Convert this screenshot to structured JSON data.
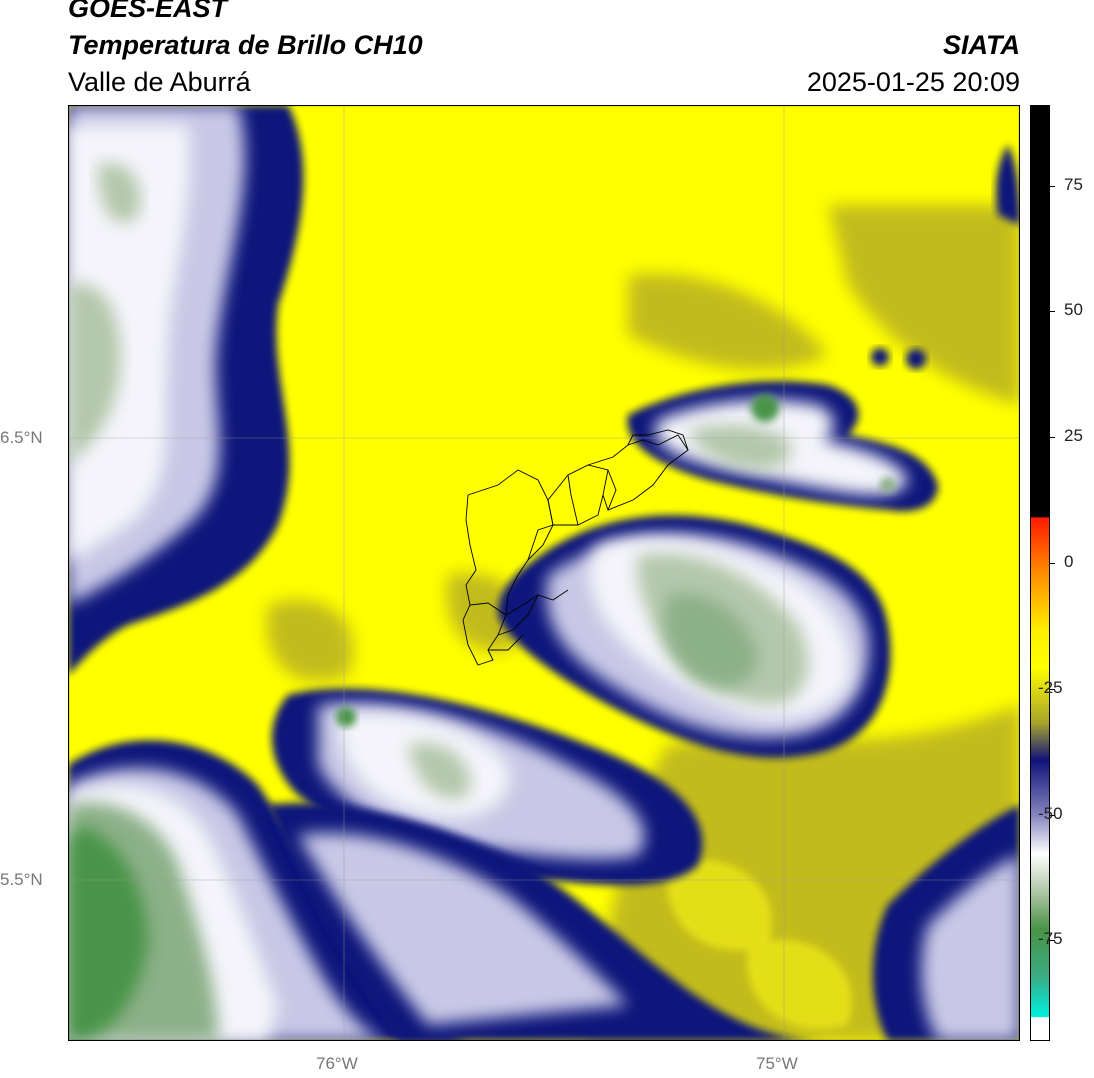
{
  "header": {
    "satellite": "GOES-EAST",
    "product": "Temperatura de Brillo CH10",
    "region": "Valle de Aburrá",
    "org": "SIATA",
    "datetime": "2025-01-25 20:09"
  },
  "map": {
    "lon_labels": [
      "76°W",
      "75°W"
    ],
    "lat_labels": [
      "6.5°N",
      "5.5°N"
    ],
    "grid": true,
    "extent_lon": [
      -76.63,
      -74.47
    ],
    "extent_lat": [
      5.16,
      7.25
    ]
  },
  "colorbar": {
    "ticks": [
      "75",
      "50",
      "25",
      "0",
      "-25",
      "-50",
      "-75"
    ],
    "tick_values": [
      75,
      50,
      25,
      0,
      -25,
      -50,
      -75
    ],
    "range": [
      -95,
      91
    ]
  },
  "colors": {
    "yellow": "#ffff00",
    "olive": "#a8a42a",
    "navy": "#10127a",
    "lavender": "#c8c8e6",
    "white": "#ffffff",
    "sage": "#b0c8a8",
    "green": "#4a9448",
    "cyan": "#00e8d0",
    "black": "#000000"
  }
}
